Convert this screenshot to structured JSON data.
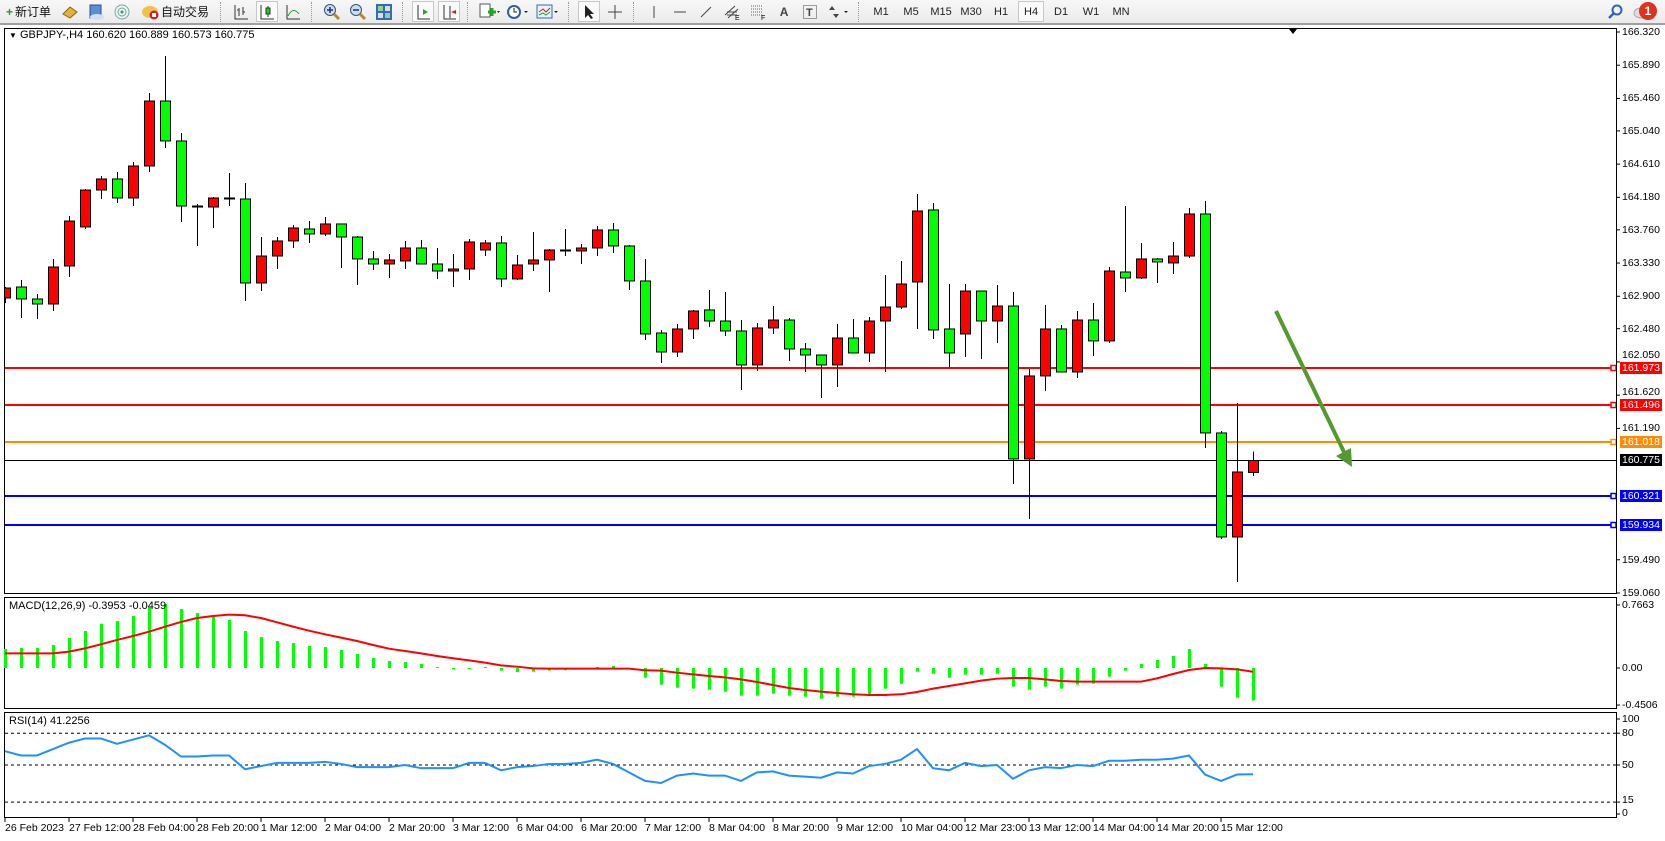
{
  "toolbar": {
    "new_order_label": "新订单",
    "auto_trade_label": "自动交易",
    "icons": [
      "new-order-icon",
      "market-watch-icon",
      "data-window-icon",
      "signals-icon",
      "auto-trade-icon",
      "bar-chart-icon",
      "candlestick-icon",
      "line-chart-icon",
      "zoom-in-icon",
      "zoom-out-icon",
      "tile-windows-icon",
      "auto-scroll-icon",
      "chart-shift-icon",
      "indicators-icon",
      "periods-icon",
      "templates-icon",
      "cursor-icon",
      "crosshair-icon",
      "vertical-line-icon",
      "horizontal-line-icon",
      "trendline-icon",
      "equidistant-channel-icon",
      "fibonacci-icon",
      "text-icon",
      "text-label-icon",
      "arrows-icon"
    ],
    "timeframes": [
      "M1",
      "M5",
      "M15",
      "M30",
      "H1",
      "H4",
      "D1",
      "W1",
      "MN"
    ],
    "active_timeframe": "H4",
    "notification_count": "1"
  },
  "chart": {
    "symbol_info": "GBPJPY-,H4  160.620 160.889 160.573 160.775",
    "bull_color": "#ff0000",
    "bear_color": "#00ff00",
    "price_axis_ticks": [
      "166.320",
      "165.890",
      "165.460",
      "165.040",
      "164.610",
      "164.180",
      "163.760",
      "163.330",
      "162.900",
      "162.480",
      "162.050",
      "161.620",
      "161.190",
      "159.490",
      "159.060"
    ],
    "current_price": "160.775",
    "horizontal_lines": [
      {
        "price": "161.973",
        "color": "#ff0000"
      },
      {
        "price": "161.496",
        "color": "#ff0000"
      },
      {
        "price": "161.018",
        "color": "#ff8c00"
      },
      {
        "price": "160.321",
        "color": "#0000ff"
      },
      {
        "price": "159.934",
        "color": "#0000ff"
      }
    ],
    "arrow_color": "#559a30",
    "time_labels": [
      "26 Feb 2023",
      "27 Feb 12:00",
      "28 Feb 04:00",
      "28 Feb 20:00",
      "1 Mar 12:00",
      "2 Mar 04:00",
      "2 Mar 20:00",
      "3 Mar 12:00",
      "6 Mar 04:00",
      "6 Mar 20:00",
      "7 Mar 12:00",
      "8 Mar 04:00",
      "8 Mar 20:00",
      "9 Mar 12:00",
      "10 Mar 04:00",
      "12 Mar 23:00",
      "13 Mar 12:00",
      "14 Mar 04:00",
      "14 Mar 20:00",
      "15 Mar 12:00"
    ]
  },
  "macd": {
    "label": "MACD(12,26,9) -0.3953 -0.0459",
    "axis_ticks": [
      "0.7663",
      "0.00",
      "-0.4506"
    ],
    "histogram_color": "#00ff00",
    "signal_color": "#ff0000"
  },
  "rsi": {
    "label": "RSI(14) 41.2256",
    "axis_ticks": [
      "100",
      "80",
      "50",
      "15",
      "0"
    ],
    "levels": [
      80,
      50,
      15
    ],
    "line_color": "#1e90ff"
  },
  "chart_data": {
    "type": "candlestick",
    "symbol": "GBPJPY-",
    "timeframe": "H4",
    "ylim": [
      159.06,
      166.32
    ],
    "ohlc": [
      [
        162.878,
        163.02,
        162.813,
        163.007
      ],
      [
        163.02,
        163.111,
        162.619,
        162.865
      ],
      [
        162.865,
        162.93,
        162.606,
        162.8
      ],
      [
        162.8,
        163.383,
        162.71,
        163.279
      ],
      [
        163.292,
        163.939,
        163.15,
        163.874
      ],
      [
        163.797,
        164.288,
        163.771,
        164.275
      ],
      [
        164.275,
        164.457,
        164.159,
        164.418
      ],
      [
        164.418,
        164.508,
        164.107,
        164.172
      ],
      [
        164.172,
        164.638,
        164.068,
        164.586
      ],
      [
        164.586,
        165.531,
        164.508,
        165.427
      ],
      [
        165.427,
        166.009,
        164.819,
        164.91
      ],
      [
        164.91,
        165.013,
        163.861,
        164.068
      ],
      [
        164.068,
        164.094,
        163.551,
        164.055
      ],
      [
        164.055,
        164.185,
        163.784,
        164.172
      ],
      [
        164.172,
        164.495,
        164.068,
        164.16
      ],
      [
        164.159,
        164.366,
        162.839,
        163.072
      ],
      [
        163.072,
        163.667,
        162.968,
        163.421
      ],
      [
        163.421,
        163.667,
        163.253,
        163.616
      ],
      [
        163.616,
        163.823,
        163.525,
        163.784
      ],
      [
        163.771,
        163.874,
        163.59,
        163.706
      ],
      [
        163.706,
        163.926,
        163.68,
        163.836
      ],
      [
        163.836,
        163.836,
        163.266,
        163.667
      ],
      [
        163.667,
        163.68,
        163.046,
        163.383
      ],
      [
        163.383,
        163.486,
        163.24,
        163.318
      ],
      [
        163.318,
        163.447,
        163.137,
        163.37
      ],
      [
        163.357,
        163.616,
        163.253,
        163.525
      ],
      [
        163.525,
        163.628,
        163.318,
        163.318
      ],
      [
        163.318,
        163.525,
        163.124,
        163.227
      ],
      [
        163.227,
        163.447,
        163.02,
        163.253
      ],
      [
        163.253,
        163.641,
        163.111,
        163.603
      ],
      [
        163.499,
        163.628,
        163.421,
        163.59
      ],
      [
        163.59,
        163.68,
        163.02,
        163.124
      ],
      [
        163.124,
        163.434,
        163.111,
        163.305
      ],
      [
        163.318,
        163.732,
        163.227,
        163.37
      ],
      [
        163.37,
        163.512,
        162.956,
        163.499
      ],
      [
        163.499,
        163.771,
        163.421,
        163.486
      ],
      [
        163.486,
        163.577,
        163.318,
        163.525
      ],
      [
        163.525,
        163.81,
        163.421,
        163.758
      ],
      [
        163.758,
        163.848,
        163.46,
        163.551
      ],
      [
        163.551,
        163.564,
        162.981,
        163.098
      ],
      [
        163.098,
        163.383,
        162.334,
        162.412
      ],
      [
        162.425,
        162.464,
        162.037,
        162.179
      ],
      [
        162.179,
        162.542,
        162.114,
        162.477
      ],
      [
        162.477,
        162.723,
        162.347,
        162.71
      ],
      [
        162.723,
        162.981,
        162.503,
        162.58
      ],
      [
        162.58,
        162.956,
        162.386,
        162.451
      ],
      [
        162.451,
        162.593,
        161.687,
        162.011
      ],
      [
        162.011,
        162.554,
        161.933,
        162.49
      ],
      [
        162.49,
        162.774,
        162.412,
        162.593
      ],
      [
        162.593,
        162.619,
        162.063,
        162.218
      ],
      [
        162.218,
        162.296,
        161.92,
        162.14
      ],
      [
        162.14,
        162.14,
        161.584,
        162.011
      ],
      [
        162.011,
        162.542,
        161.726,
        162.36
      ],
      [
        162.36,
        162.606,
        162.166,
        162.166
      ],
      [
        162.166,
        162.632,
        162.05,
        162.58
      ],
      [
        162.58,
        163.176,
        161.92,
        162.761
      ],
      [
        162.761,
        163.357,
        162.736,
        163.059
      ],
      [
        163.085,
        164.224,
        162.477,
        164.004
      ],
      [
        164.017,
        164.107,
        162.347,
        162.464
      ],
      [
        162.477,
        163.059,
        161.985,
        162.166
      ],
      [
        162.412,
        163.059,
        162.114,
        162.968
      ],
      [
        162.968,
        162.968,
        162.089,
        162.58
      ],
      [
        162.58,
        163.046,
        162.296,
        162.774
      ],
      [
        162.774,
        162.956,
        160.471,
        160.795
      ],
      [
        160.795,
        161.959,
        160.018,
        161.869
      ],
      [
        161.869,
        162.787,
        161.675,
        162.477
      ],
      [
        162.477,
        162.529,
        161.92,
        161.92
      ],
      [
        161.92,
        162.71,
        161.843,
        162.593
      ],
      [
        162.593,
        162.813,
        162.127,
        162.322
      ],
      [
        162.322,
        163.279,
        162.296,
        163.227
      ],
      [
        163.214,
        164.068,
        162.956,
        163.137
      ],
      [
        163.137,
        163.59,
        163.124,
        163.383
      ],
      [
        163.383,
        163.396,
        163.072,
        163.344
      ],
      [
        163.331,
        163.603,
        163.189,
        163.421
      ],
      [
        163.421,
        164.043,
        163.396,
        163.965
      ],
      [
        163.965,
        164.133,
        160.937,
        161.131
      ],
      [
        161.131,
        161.157,
        159.759,
        159.785
      ],
      [
        159.785,
        161.519,
        159.203,
        160.626
      ],
      [
        160.62,
        160.889,
        160.573,
        160.775
      ]
    ],
    "macd_ylim": [
      -0.4506,
      0.7663
    ],
    "macd_histogram": [
      0.231,
      0.243,
      0.243,
      0.28,
      0.365,
      0.45,
      0.539,
      0.572,
      0.633,
      0.738,
      0.779,
      0.718,
      0.669,
      0.624,
      0.584,
      0.45,
      0.377,
      0.328,
      0.304,
      0.268,
      0.255,
      0.219,
      0.17,
      0.122,
      0.085,
      0.073,
      0.049,
      0.012,
      -0.016,
      -0.008,
      0.012,
      -0.032,
      -0.049,
      -0.045,
      -0.032,
      -0.028,
      0.0,
      0.012,
      0.024,
      0.0,
      -0.118,
      -0.203,
      -0.239,
      -0.251,
      -0.264,
      -0.288,
      -0.337,
      -0.337,
      -0.312,
      -0.337,
      -0.349,
      -0.373,
      -0.349,
      -0.349,
      -0.324,
      -0.251,
      -0.191,
      -0.045,
      -0.069,
      -0.118,
      -0.081,
      -0.081,
      -0.069,
      -0.227,
      -0.264,
      -0.227,
      -0.251,
      -0.203,
      -0.191,
      -0.105,
      -0.032,
      0.049,
      0.097,
      0.146,
      0.231,
      0.049,
      -0.227,
      -0.361,
      -0.3953
    ],
    "macd_signal": [
      0.178,
      0.178,
      0.178,
      0.178,
      0.199,
      0.239,
      0.288,
      0.341,
      0.389,
      0.442,
      0.503,
      0.56,
      0.608,
      0.633,
      0.649,
      0.641,
      0.608,
      0.556,
      0.503,
      0.454,
      0.41,
      0.369,
      0.328,
      0.28,
      0.235,
      0.207,
      0.178,
      0.146,
      0.118,
      0.093,
      0.065,
      0.032,
      0.016,
      -0.004,
      -0.008,
      -0.008,
      -0.008,
      -0.008,
      -0.008,
      -0.008,
      -0.028,
      -0.032,
      -0.057,
      -0.077,
      -0.097,
      -0.114,
      -0.138,
      -0.17,
      -0.207,
      -0.243,
      -0.268,
      -0.288,
      -0.304,
      -0.32,
      -0.328,
      -0.328,
      -0.32,
      -0.292,
      -0.251,
      -0.219,
      -0.187,
      -0.154,
      -0.13,
      -0.122,
      -0.122,
      -0.138,
      -0.158,
      -0.166,
      -0.166,
      -0.166,
      -0.166,
      -0.166,
      -0.126,
      -0.073,
      -0.024,
      0.0,
      -0.004,
      -0.016,
      -0.0459
    ],
    "rsi_ylim": [
      0,
      100
    ],
    "rsi": [
      63,
      59,
      59,
      65,
      71,
      75,
      75,
      70,
      74,
      78,
      69,
      58,
      58,
      59,
      59,
      46,
      49,
      52,
      52,
      52,
      53,
      51,
      48,
      48,
      48,
      50,
      47,
      47,
      47,
      52,
      52,
      45,
      48,
      49,
      51,
      51,
      52,
      55,
      51,
      43,
      35,
      33,
      40,
      42,
      40,
      40,
      35,
      43,
      44,
      40,
      39,
      38,
      43,
      42,
      49,
      51,
      55,
      65,
      47,
      45,
      52,
      49,
      50,
      37,
      45,
      48,
      47,
      50,
      49,
      54,
      54,
      55,
      55,
      56,
      59,
      41,
      35,
      41,
      41.2256
    ]
  }
}
